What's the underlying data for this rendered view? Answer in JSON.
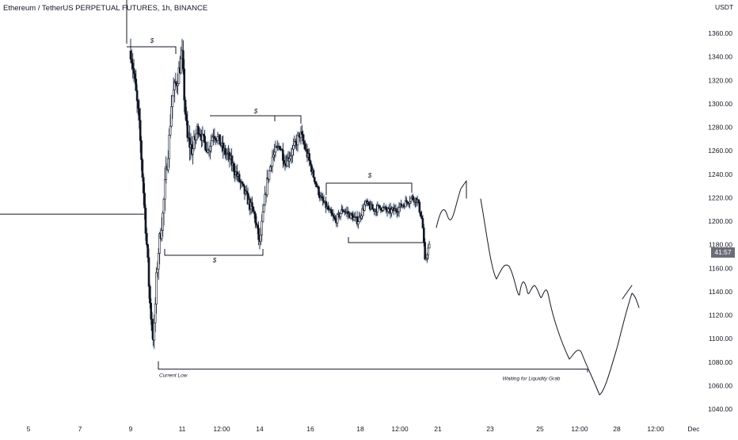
{
  "header": {
    "symbol_title": "Ethereum / TetherUS PERPETUAL FUTURES, 1h, BINANCE",
    "currency": "USDT"
  },
  "price_tag": "41:57",
  "chart_data": {
    "type": "candlestick",
    "title": "Ethereum / TetherUS PERPETUAL FUTURES, 1h, BINANCE",
    "x_tick_labels": [
      "5",
      "7",
      "9",
      "11",
      "12:00",
      "14",
      "16",
      "18",
      "12:00",
      "21",
      "23",
      "25",
      "12:00",
      "28",
      "12:00",
      "Dec"
    ],
    "y_tick_labels": [
      "1360.00",
      "1340.00",
      "1320.00",
      "1300.00",
      "1280.00",
      "1260.00",
      "1240.00",
      "1220.00",
      "1200.00",
      "1180.00",
      "1160.00",
      "1140.00",
      "1120.00",
      "1100.00",
      "1080.00",
      "1060.00",
      "1040.00"
    ],
    "ylim": [
      1032,
      1390
    ],
    "y_ticks": [
      1360,
      1340,
      1320,
      1300,
      1280,
      1260,
      1240,
      1220,
      1200,
      1180,
      1160,
      1140,
      1120,
      1100,
      1080,
      1060,
      1040
    ],
    "price_path": [
      [
        9.0,
        1345
      ],
      [
        9.1,
        1330
      ],
      [
        9.2,
        1310
      ],
      [
        9.3,
        1290
      ],
      [
        9.4,
        1260
      ],
      [
        9.5,
        1225
      ],
      [
        9.6,
        1190
      ],
      [
        9.7,
        1150
      ],
      [
        9.75,
        1130
      ],
      [
        9.85,
        1105
      ],
      [
        9.9,
        1100
      ],
      [
        10.0,
        1150
      ],
      [
        10.1,
        1180
      ],
      [
        10.25,
        1205
      ],
      [
        10.35,
        1235
      ],
      [
        10.5,
        1270
      ],
      [
        10.6,
        1305
      ],
      [
        10.8,
        1320
      ],
      [
        11.0,
        1340
      ],
      [
        11.1,
        1300
      ],
      [
        11.2,
        1270
      ],
      [
        11.4,
        1260
      ],
      [
        11.6,
        1280
      ],
      [
        11.8,
        1270
      ],
      [
        12.0,
        1260
      ],
      [
        12.2,
        1275
      ],
      [
        12.4,
        1270
      ],
      [
        12.6,
        1260
      ],
      [
        12.8,
        1255
      ],
      [
        13.0,
        1245
      ],
      [
        13.3,
        1230
      ],
      [
        13.6,
        1215
      ],
      [
        13.8,
        1205
      ],
      [
        14.0,
        1180
      ],
      [
        14.1,
        1200
      ],
      [
        14.3,
        1235
      ],
      [
        14.5,
        1255
      ],
      [
        14.8,
        1265
      ],
      [
        15.0,
        1250
      ],
      [
        15.3,
        1260
      ],
      [
        15.6,
        1275
      ],
      [
        15.9,
        1255
      ],
      [
        16.1,
        1240
      ],
      [
        16.4,
        1220
      ],
      [
        16.7,
        1210
      ],
      [
        17.0,
        1200
      ],
      [
        17.3,
        1210
      ],
      [
        17.6,
        1205
      ],
      [
        17.9,
        1200
      ],
      [
        18.2,
        1215
      ],
      [
        18.5,
        1210
      ],
      [
        18.8,
        1212
      ],
      [
        19.1,
        1208
      ],
      [
        19.4,
        1210
      ],
      [
        19.7,
        1215
      ],
      [
        20.0,
        1220
      ],
      [
        20.2,
        1218
      ],
      [
        20.4,
        1200
      ],
      [
        20.5,
        1165
      ],
      [
        20.6,
        1175
      ],
      [
        20.7,
        1180
      ]
    ],
    "annotations": {
      "liquidity_level_labels": [
        "$",
        "$",
        "$",
        "$"
      ],
      "current_low_label": "Current Low",
      "current_low_price": 1074,
      "projection_label": "Waiting for Liquidity Grab",
      "horizontal_ray_price": 1205
    }
  }
}
